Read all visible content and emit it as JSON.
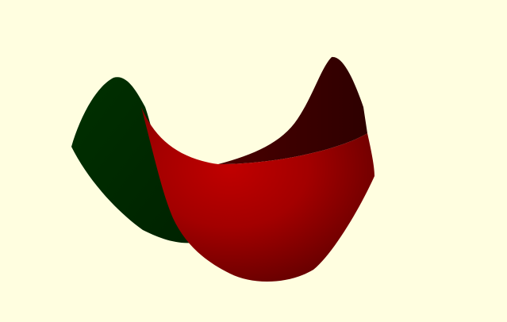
{
  "viewport": {
    "background_color": "#FFFEE0"
  },
  "model": {
    "shape": "saddle-surface",
    "colors": {
      "front_face": "#A30000",
      "front_face_highlight": "#C00000",
      "front_face_shadow": "#5E0000",
      "back_face": "#003000",
      "back_face_dark": "#002200",
      "far_face_dark": "#2E0000",
      "far_face_mid": "#4A0000"
    }
  }
}
